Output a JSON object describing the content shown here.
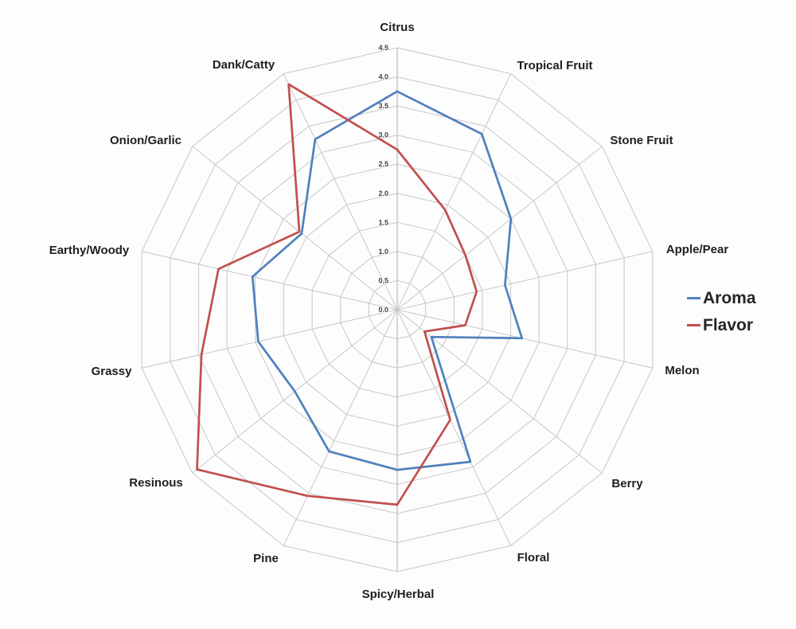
{
  "chart_data": {
    "type": "radar",
    "title": "",
    "categories": [
      "Citrus",
      "Tropical Fruit",
      "Stone Fruit",
      "Apple/Pear",
      "Melon",
      "Berry",
      "Floral",
      "Spicy/Herbal",
      "Pine",
      "Resinous",
      "Grassy",
      "Earthy/Woody",
      "Onion/Garlic",
      "Dank/Catty"
    ],
    "series": [
      {
        "name": "Aroma",
        "color": "#4F81BD",
        "values": [
          3.75,
          3.35,
          2.5,
          1.9,
          2.2,
          0.75,
          2.9,
          2.75,
          2.7,
          2.25,
          2.45,
          2.55,
          2.1,
          3.25
        ]
      },
      {
        "name": "Flavor",
        "color": "#C0504D",
        "values": [
          2.75,
          1.9,
          1.5,
          1.4,
          1.2,
          0.6,
          2.1,
          3.35,
          3.55,
          4.4,
          3.45,
          3.15,
          2.15,
          4.3
        ]
      }
    ],
    "radial_axis": {
      "min": 0.0,
      "max": 4.5,
      "step": 0.5,
      "tick_labels": [
        "0.0",
        "0.5",
        "1.0",
        "1.5",
        "2.0",
        "2.5",
        "3.0",
        "3.5",
        "4.0",
        "4.5"
      ]
    },
    "grid": true,
    "legend_position": "right",
    "colors": {
      "grid_line": "#c7c7c7",
      "value_axis": "#d8d8d8",
      "category_label": "#1f1f1f",
      "tick_label": "#424242",
      "background": "#fdfdfd"
    }
  }
}
